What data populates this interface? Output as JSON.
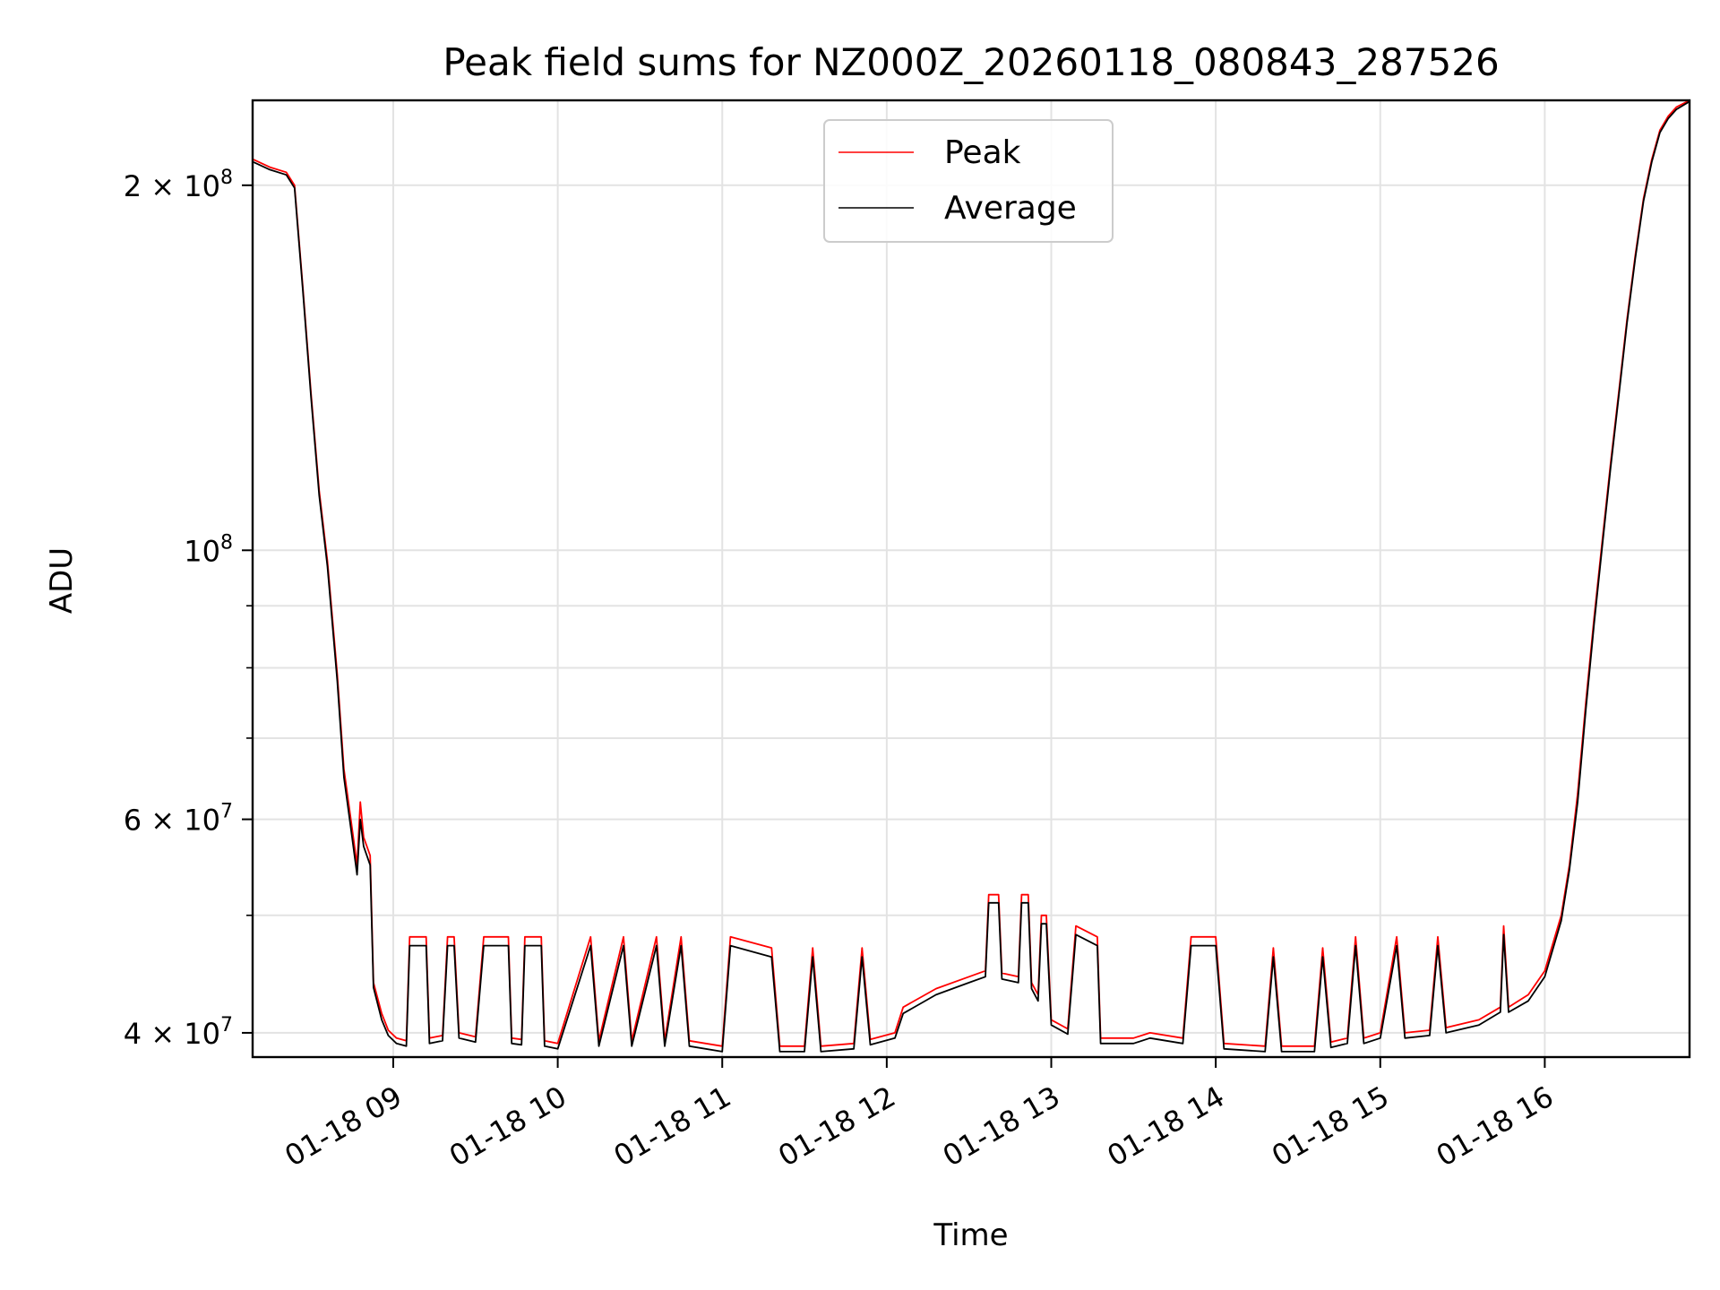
{
  "chart_data": {
    "type": "line",
    "title": "Peak field sums for NZ000Z_20260118_080843_287526",
    "xlabel": "Time",
    "ylabel": "ADU",
    "yscale": "log",
    "ylim": [
      38200000,
      235000000
    ],
    "xlim_hours": [
      8.1453,
      16.88
    ],
    "grid": true,
    "legend_position": "upper center",
    "x_ticks": [
      {
        "hour": 9,
        "label": "01-18 09"
      },
      {
        "hour": 10,
        "label": "01-18 10"
      },
      {
        "hour": 11,
        "label": "01-18 11"
      },
      {
        "hour": 12,
        "label": "01-18 12"
      },
      {
        "hour": 13,
        "label": "01-18 13"
      },
      {
        "hour": 14,
        "label": "01-18 14"
      },
      {
        "hour": 15,
        "label": "01-18 15"
      },
      {
        "hour": 16,
        "label": "01-18 16"
      }
    ],
    "y_major_ticks": [
      {
        "value": 200000000,
        "mantissa": "2 × 10",
        "exp": "8"
      },
      {
        "value": 100000000,
        "mantissa": "10",
        "exp": "8"
      },
      {
        "value": 60000000,
        "mantissa": "6 × 10",
        "exp": "7"
      },
      {
        "value": 40000000,
        "mantissa": "4 × 10",
        "exp": "7"
      }
    ],
    "y_minor_gridlines": [
      90000000,
      80000000,
      70000000,
      50000000
    ],
    "series": [
      {
        "name": "Peak",
        "color": "#ff0000",
        "points": [
          [
            8.15,
            210
          ],
          [
            8.25,
            207
          ],
          [
            8.35,
            205
          ],
          [
            8.4,
            200
          ],
          [
            8.45,
            165
          ],
          [
            8.5,
            135
          ],
          [
            8.55,
            112
          ],
          [
            8.6,
            98
          ],
          [
            8.63,
            88
          ],
          [
            8.66,
            79
          ],
          [
            8.7,
            66
          ],
          [
            8.75,
            59
          ],
          [
            8.78,
            55
          ],
          [
            8.8,
            62
          ],
          [
            8.82,
            58
          ],
          [
            8.86,
            56
          ],
          [
            8.88,
            44
          ],
          [
            8.93,
            41.5
          ],
          [
            8.97,
            40.2
          ],
          [
            9.02,
            39.6
          ],
          [
            9.08,
            39.4
          ],
          [
            9.1,
            48
          ],
          [
            9.2,
            48
          ],
          [
            9.22,
            39.6
          ],
          [
            9.3,
            39.8
          ],
          [
            9.33,
            48
          ],
          [
            9.37,
            48
          ],
          [
            9.4,
            40
          ],
          [
            9.5,
            39.7
          ],
          [
            9.55,
            48
          ],
          [
            9.7,
            48
          ],
          [
            9.72,
            39.6
          ],
          [
            9.78,
            39.5
          ],
          [
            9.8,
            48
          ],
          [
            9.9,
            48
          ],
          [
            9.92,
            39.4
          ],
          [
            10.0,
            39.2
          ],
          [
            10.2,
            48
          ],
          [
            10.25,
            39.4
          ],
          [
            10.4,
            48
          ],
          [
            10.45,
            39.4
          ],
          [
            10.6,
            48
          ],
          [
            10.65,
            39.4
          ],
          [
            10.75,
            48
          ],
          [
            10.8,
            39.4
          ],
          [
            11.0,
            39.0
          ],
          [
            11.05,
            48
          ],
          [
            11.3,
            47
          ],
          [
            11.35,
            39.0
          ],
          [
            11.5,
            39.0
          ],
          [
            11.55,
            47
          ],
          [
            11.6,
            39.0
          ],
          [
            11.8,
            39.2
          ],
          [
            11.85,
            47
          ],
          [
            11.9,
            39.5
          ],
          [
            12.05,
            40
          ],
          [
            12.1,
            42
          ],
          [
            12.3,
            43.5
          ],
          [
            12.5,
            44.5
          ],
          [
            12.6,
            45
          ],
          [
            12.62,
            52
          ],
          [
            12.68,
            52
          ],
          [
            12.7,
            44.8
          ],
          [
            12.8,
            44.5
          ],
          [
            12.82,
            52
          ],
          [
            12.86,
            52
          ],
          [
            12.88,
            44
          ],
          [
            12.92,
            43
          ],
          [
            12.94,
            50
          ],
          [
            12.97,
            50
          ],
          [
            13.0,
            41
          ],
          [
            13.1,
            40.3
          ],
          [
            13.15,
            49
          ],
          [
            13.28,
            48
          ],
          [
            13.3,
            39.6
          ],
          [
            13.5,
            39.6
          ],
          [
            13.6,
            40
          ],
          [
            13.8,
            39.6
          ],
          [
            13.85,
            48
          ],
          [
            14.0,
            48
          ],
          [
            14.05,
            39.2
          ],
          [
            14.3,
            39.0
          ],
          [
            14.35,
            47
          ],
          [
            14.4,
            39.0
          ],
          [
            14.6,
            39.0
          ],
          [
            14.65,
            47
          ],
          [
            14.7,
            39.3
          ],
          [
            14.8,
            39.6
          ],
          [
            14.85,
            48
          ],
          [
            14.9,
            39.6
          ],
          [
            15.0,
            40
          ],
          [
            15.1,
            48
          ],
          [
            15.15,
            40
          ],
          [
            15.3,
            40.2
          ],
          [
            15.35,
            48
          ],
          [
            15.4,
            40.4
          ],
          [
            15.6,
            41
          ],
          [
            15.73,
            42
          ],
          [
            15.75,
            49
          ],
          [
            15.78,
            42
          ],
          [
            15.9,
            43
          ],
          [
            16.0,
            45
          ],
          [
            16.1,
            50
          ],
          [
            16.15,
            55
          ],
          [
            16.2,
            63
          ],
          [
            16.25,
            75
          ],
          [
            16.3,
            88
          ],
          [
            16.35,
            102
          ],
          [
            16.4,
            118
          ],
          [
            16.45,
            135
          ],
          [
            16.5,
            155
          ],
          [
            16.55,
            175
          ],
          [
            16.6,
            195
          ],
          [
            16.65,
            210
          ],
          [
            16.7,
            222
          ],
          [
            16.75,
            228
          ],
          [
            16.8,
            232
          ],
          [
            16.88,
            235
          ]
        ]
      },
      {
        "name": "Average",
        "color": "#000000",
        "points": [
          [
            8.15,
            209
          ],
          [
            8.25,
            206
          ],
          [
            8.35,
            204
          ],
          [
            8.4,
            199
          ],
          [
            8.45,
            164
          ],
          [
            8.5,
            134
          ],
          [
            8.55,
            111
          ],
          [
            8.6,
            97
          ],
          [
            8.63,
            87
          ],
          [
            8.66,
            78
          ],
          [
            8.7,
            65
          ],
          [
            8.75,
            58
          ],
          [
            8.78,
            54
          ],
          [
            8.8,
            60
          ],
          [
            8.82,
            57
          ],
          [
            8.86,
            55
          ],
          [
            8.88,
            43.6
          ],
          [
            8.93,
            41
          ],
          [
            8.97,
            39.8
          ],
          [
            9.02,
            39.2
          ],
          [
            9.08,
            39.0
          ],
          [
            9.1,
            47.2
          ],
          [
            9.2,
            47.2
          ],
          [
            9.22,
            39.2
          ],
          [
            9.3,
            39.4
          ],
          [
            9.33,
            47.2
          ],
          [
            9.37,
            47.2
          ],
          [
            9.4,
            39.6
          ],
          [
            9.5,
            39.3
          ],
          [
            9.55,
            47.2
          ],
          [
            9.7,
            47.2
          ],
          [
            9.72,
            39.2
          ],
          [
            9.78,
            39.1
          ],
          [
            9.8,
            47.2
          ],
          [
            9.9,
            47.2
          ],
          [
            9.92,
            39.0
          ],
          [
            10.0,
            38.8
          ],
          [
            10.2,
            47.2
          ],
          [
            10.25,
            39.0
          ],
          [
            10.4,
            47.2
          ],
          [
            10.45,
            39.0
          ],
          [
            10.6,
            47.2
          ],
          [
            10.65,
            39.0
          ],
          [
            10.75,
            47.2
          ],
          [
            10.8,
            39.0
          ],
          [
            11.0,
            38.6
          ],
          [
            11.05,
            47.2
          ],
          [
            11.3,
            46.2
          ],
          [
            11.35,
            38.6
          ],
          [
            11.5,
            38.6
          ],
          [
            11.55,
            46.2
          ],
          [
            11.6,
            38.6
          ],
          [
            11.8,
            38.8
          ],
          [
            11.85,
            46.2
          ],
          [
            11.9,
            39.1
          ],
          [
            12.05,
            39.6
          ],
          [
            12.1,
            41.5
          ],
          [
            12.3,
            43
          ],
          [
            12.5,
            44
          ],
          [
            12.6,
            44.5
          ],
          [
            12.62,
            51.2
          ],
          [
            12.68,
            51.2
          ],
          [
            12.7,
            44.3
          ],
          [
            12.8,
            44
          ],
          [
            12.82,
            51.2
          ],
          [
            12.86,
            51.2
          ],
          [
            12.88,
            43.5
          ],
          [
            12.92,
            42.5
          ],
          [
            12.94,
            49.2
          ],
          [
            12.97,
            49.2
          ],
          [
            13.0,
            40.6
          ],
          [
            13.1,
            39.9
          ],
          [
            13.15,
            48.2
          ],
          [
            13.28,
            47.2
          ],
          [
            13.3,
            39.2
          ],
          [
            13.5,
            39.2
          ],
          [
            13.6,
            39.6
          ],
          [
            13.8,
            39.2
          ],
          [
            13.85,
            47.2
          ],
          [
            14.0,
            47.2
          ],
          [
            14.05,
            38.8
          ],
          [
            14.3,
            38.6
          ],
          [
            14.35,
            46.2
          ],
          [
            14.4,
            38.6
          ],
          [
            14.6,
            38.6
          ],
          [
            14.65,
            46.2
          ],
          [
            14.7,
            38.9
          ],
          [
            14.8,
            39.2
          ],
          [
            14.85,
            47.2
          ],
          [
            14.9,
            39.2
          ],
          [
            15.0,
            39.6
          ],
          [
            15.1,
            47.2
          ],
          [
            15.15,
            39.6
          ],
          [
            15.3,
            39.8
          ],
          [
            15.35,
            47.2
          ],
          [
            15.4,
            40
          ],
          [
            15.6,
            40.6
          ],
          [
            15.73,
            41.6
          ],
          [
            15.75,
            48.2
          ],
          [
            15.78,
            41.6
          ],
          [
            15.9,
            42.5
          ],
          [
            16.0,
            44.5
          ],
          [
            16.1,
            49.5
          ],
          [
            16.15,
            54.5
          ],
          [
            16.2,
            62
          ],
          [
            16.25,
            74
          ],
          [
            16.3,
            87
          ],
          [
            16.35,
            101
          ],
          [
            16.4,
            117
          ],
          [
            16.45,
            134
          ],
          [
            16.5,
            154
          ],
          [
            16.55,
            174
          ],
          [
            16.6,
            194
          ],
          [
            16.65,
            209
          ],
          [
            16.7,
            221
          ],
          [
            16.75,
            227
          ],
          [
            16.8,
            231
          ],
          [
            16.88,
            234.5
          ]
        ]
      }
    ]
  }
}
